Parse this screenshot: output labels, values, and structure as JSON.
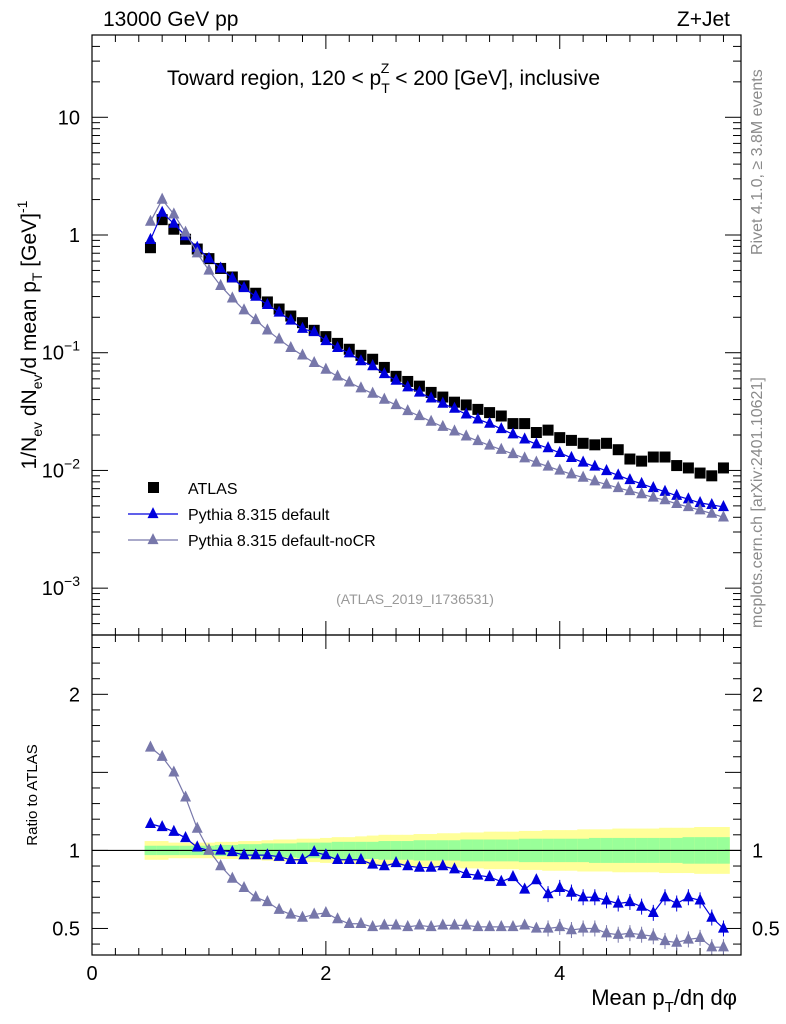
{
  "header": {
    "left": "13000 GeV pp",
    "right": "Z+Jet"
  },
  "plot_title": {
    "main": "Toward region, 120 < p",
    "sub": "T",
    "sup": "Z",
    "rest": " < 200 [GeV], inclusive"
  },
  "side_labels": {
    "rivet": "Rivet 4.1.0, ≥ 3.8M events",
    "mcplots": "mcplots.cern.ch [arXiv:2401.10621]"
  },
  "analysis_id": "(ATLAS_2019_I1736531)",
  "axes": {
    "ylabel_main": "1/N_ev dN_ev/d mean p_T [GeV]^-1",
    "ylabel_ratio": "Ratio to ATLAS",
    "xlabel": "Mean p_T/dη dφ",
    "xlabel_parts": {
      "a": "Mean p",
      "b": "T",
      "c": "/dη dφ"
    },
    "ylabel_parts": {
      "a": "1/N",
      "b": "ev",
      "c": " dN",
      "d": "ev",
      "e": "/d mean p",
      "f": "T",
      "g": " [GeV]",
      "h": "-1"
    },
    "x_ticks": [
      "0",
      "2",
      "4"
    ],
    "y_ticks_main": [
      {
        "v": 10,
        "label": "10"
      },
      {
        "v": 1,
        "label": "1"
      },
      {
        "v": 0.1,
        "label": "10",
        "exp": "−1"
      },
      {
        "v": 0.01,
        "label": "10",
        "exp": "−2"
      },
      {
        "v": 0.001,
        "label": "10",
        "exp": "−3"
      }
    ],
    "y_ticks_ratio": [
      "2",
      "1",
      "0.5"
    ]
  },
  "legend": [
    {
      "name": "ATLAS",
      "marker": "square",
      "color": "#000000"
    },
    {
      "name": "Pythia 8.315 default",
      "marker": "triangle",
      "color": "#0000dd"
    },
    {
      "name": "Pythia 8.315 default-noCR",
      "marker": "triangle",
      "color": "#7777aa"
    }
  ],
  "chart_data": [
    {
      "type": "scatter",
      "panel": "main",
      "xlim": [
        0,
        5.55
      ],
      "ylim": [
        0.0004,
        50
      ],
      "yscale": "log",
      "x": [
        0.5,
        0.6,
        0.7,
        0.8,
        0.9,
        1.0,
        1.1,
        1.2,
        1.3,
        1.4,
        1.5,
        1.6,
        1.7,
        1.8,
        1.9,
        2.0,
        2.1,
        2.2,
        2.3,
        2.4,
        2.5,
        2.6,
        2.7,
        2.8,
        2.9,
        3.0,
        3.1,
        3.2,
        3.3,
        3.4,
        3.5,
        3.6,
        3.7,
        3.8,
        3.9,
        4.0,
        4.1,
        4.2,
        4.3,
        4.4,
        4.5,
        4.6,
        4.7,
        4.8,
        4.9,
        5.0,
        5.1,
        5.2,
        5.3,
        5.4
      ],
      "series": [
        {
          "name": "ATLAS",
          "values": [
            0.78,
            1.35,
            1.12,
            0.92,
            0.76,
            0.63,
            0.52,
            0.44,
            0.37,
            0.32,
            0.27,
            0.235,
            0.205,
            0.18,
            0.155,
            0.137,
            0.12,
            0.107,
            0.095,
            0.088,
            0.075,
            0.063,
            0.057,
            0.052,
            0.046,
            0.042,
            0.038,
            0.036,
            0.033,
            0.031,
            0.029,
            0.025,
            0.025,
            0.021,
            0.022,
            0.019,
            0.018,
            0.017,
            0.0165,
            0.017,
            0.015,
            0.0125,
            0.012,
            0.013,
            0.013,
            0.011,
            0.0105,
            0.0095,
            0.009,
            0.0105
          ]
        },
        {
          "name": "Pythia 8.315 default",
          "values": [
            0.91,
            1.55,
            1.25,
            0.98,
            0.78,
            0.63,
            0.52,
            0.43,
            0.355,
            0.3,
            0.255,
            0.22,
            0.188,
            0.16,
            0.15,
            0.126,
            0.11,
            0.099,
            0.085,
            0.077,
            0.066,
            0.058,
            0.051,
            0.046,
            0.041,
            0.037,
            0.0335,
            0.03,
            0.0272,
            0.025,
            0.0225,
            0.0203,
            0.0184,
            0.0167,
            0.0155,
            0.0141,
            0.0128,
            0.0117,
            0.0108,
            0.0099,
            0.0091,
            0.0083,
            0.0077,
            0.0071,
            0.0066,
            0.0061,
            0.0057,
            0.0053,
            0.0051,
            0.0049
          ]
        },
        {
          "name": "Pythia 8.315 default-noCR",
          "values": [
            1.3,
            2.0,
            1.5,
            1.05,
            0.7,
            0.5,
            0.37,
            0.29,
            0.23,
            0.19,
            0.155,
            0.13,
            0.11,
            0.095,
            0.082,
            0.072,
            0.063,
            0.056,
            0.05,
            0.045,
            0.04,
            0.036,
            0.032,
            0.029,
            0.026,
            0.0235,
            0.0215,
            0.0195,
            0.0178,
            0.0163,
            0.015,
            0.0138,
            0.0127,
            0.0117,
            0.0108,
            0.01,
            0.0093,
            0.0087,
            0.0081,
            0.0076,
            0.0071,
            0.0067,
            0.0063,
            0.0059,
            0.0056,
            0.0052,
            0.0049,
            0.0046,
            0.0043,
            0.004
          ]
        }
      ]
    },
    {
      "type": "scatter",
      "panel": "ratio",
      "ylabel": "Ratio to ATLAS",
      "xlim": [
        0,
        5.55
      ],
      "ylim": [
        0.33,
        2.38
      ],
      "x": [
        0.5,
        0.6,
        0.7,
        0.8,
        0.9,
        1.0,
        1.1,
        1.2,
        1.3,
        1.4,
        1.5,
        1.6,
        1.7,
        1.8,
        1.9,
        2.0,
        2.1,
        2.2,
        2.3,
        2.4,
        2.5,
        2.6,
        2.7,
        2.8,
        2.9,
        3.0,
        3.1,
        3.2,
        3.3,
        3.4,
        3.5,
        3.6,
        3.7,
        3.8,
        3.9,
        4.0,
        4.1,
        4.2,
        4.3,
        4.4,
        4.5,
        4.6,
        4.7,
        4.8,
        4.9,
        5.0,
        5.1,
        5.2,
        5.3,
        5.4
      ],
      "series": [
        {
          "name": "Pythia 8.315 default",
          "values": [
            1.17,
            1.15,
            1.12,
            1.08,
            1.02,
            1.0,
            1.0,
            0.99,
            0.97,
            0.97,
            0.97,
            0.96,
            0.94,
            0.94,
            0.99,
            0.97,
            0.94,
            0.94,
            0.94,
            0.91,
            0.9,
            0.92,
            0.9,
            0.89,
            0.89,
            0.9,
            0.88,
            0.85,
            0.84,
            0.83,
            0.8,
            0.83,
            0.75,
            0.81,
            0.72,
            0.76,
            0.73,
            0.7,
            0.7,
            0.68,
            0.66,
            0.67,
            0.64,
            0.6,
            0.7,
            0.66,
            0.7,
            0.68,
            0.57,
            0.5
          ]
        },
        {
          "name": "Pythia 8.315 default-noCR",
          "values": [
            1.66,
            1.6,
            1.5,
            1.34,
            1.14,
            1.0,
            0.9,
            0.82,
            0.76,
            0.7,
            0.67,
            0.62,
            0.59,
            0.57,
            0.59,
            0.6,
            0.56,
            0.53,
            0.53,
            0.51,
            0.52,
            0.52,
            0.51,
            0.52,
            0.51,
            0.52,
            0.52,
            0.52,
            0.51,
            0.51,
            0.51,
            0.51,
            0.52,
            0.5,
            0.5,
            0.51,
            0.49,
            0.5,
            0.5,
            0.47,
            0.46,
            0.47,
            0.46,
            0.45,
            0.42,
            0.41,
            0.43,
            0.44,
            0.38,
            0.38
          ]
        }
      ],
      "bands": {
        "green_halfwidth": [
          0.03,
          0.03,
          0.03,
          0.03,
          0.03,
          0.03,
          0.035,
          0.035,
          0.04,
          0.04,
          0.045,
          0.045,
          0.045,
          0.05,
          0.05,
          0.05,
          0.055,
          0.055,
          0.055,
          0.055,
          0.06,
          0.06,
          0.06,
          0.065,
          0.065,
          0.065,
          0.065,
          0.07,
          0.07,
          0.07,
          0.07,
          0.07,
          0.075,
          0.075,
          0.075,
          0.075,
          0.075,
          0.075,
          0.08,
          0.08,
          0.08,
          0.08,
          0.08,
          0.08,
          0.08,
          0.08,
          0.085,
          0.085,
          0.085,
          0.085
        ],
        "yellow_halfwidth": [
          0.06,
          0.06,
          0.05,
          0.05,
          0.05,
          0.05,
          0.055,
          0.055,
          0.06,
          0.06,
          0.065,
          0.07,
          0.07,
          0.075,
          0.075,
          0.08,
          0.085,
          0.085,
          0.09,
          0.095,
          0.1,
          0.1,
          0.1,
          0.105,
          0.105,
          0.11,
          0.11,
          0.115,
          0.115,
          0.12,
          0.12,
          0.12,
          0.125,
          0.125,
          0.13,
          0.13,
          0.13,
          0.135,
          0.135,
          0.135,
          0.14,
          0.14,
          0.14,
          0.14,
          0.145,
          0.145,
          0.145,
          0.15,
          0.15,
          0.15
        ]
      }
    }
  ]
}
